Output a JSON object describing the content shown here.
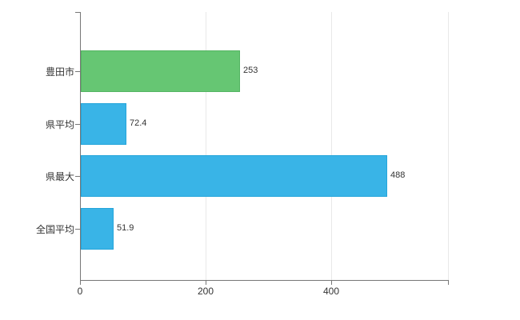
{
  "chart_data": {
    "type": "bar",
    "orientation": "horizontal",
    "title": "",
    "categories": [
      "豊田市",
      "県平均",
      "県最大",
      "全国平均"
    ],
    "values": [
      253,
      72.4,
      488,
      51.9
    ],
    "value_labels": [
      "253",
      "72.4",
      "488",
      "51.9"
    ],
    "series_colors": [
      "#66c673",
      "#39b4e7",
      "#39b4e7",
      "#39b4e7"
    ],
    "bar_border_colors": [
      "#54b562",
      "#25a5da",
      "#25a5da",
      "#25a5da"
    ],
    "x_ticks": [
      0,
      200,
      400
    ],
    "x_tick_labels": [
      "0",
      "200",
      "400"
    ],
    "xlim": [
      0,
      586
    ],
    "gridlines": [
      200,
      400,
      586
    ],
    "grid": true,
    "legend": "none",
    "axis_color": "#777777",
    "gridline_color": "#e8e8e8",
    "text_color": "#333333"
  }
}
